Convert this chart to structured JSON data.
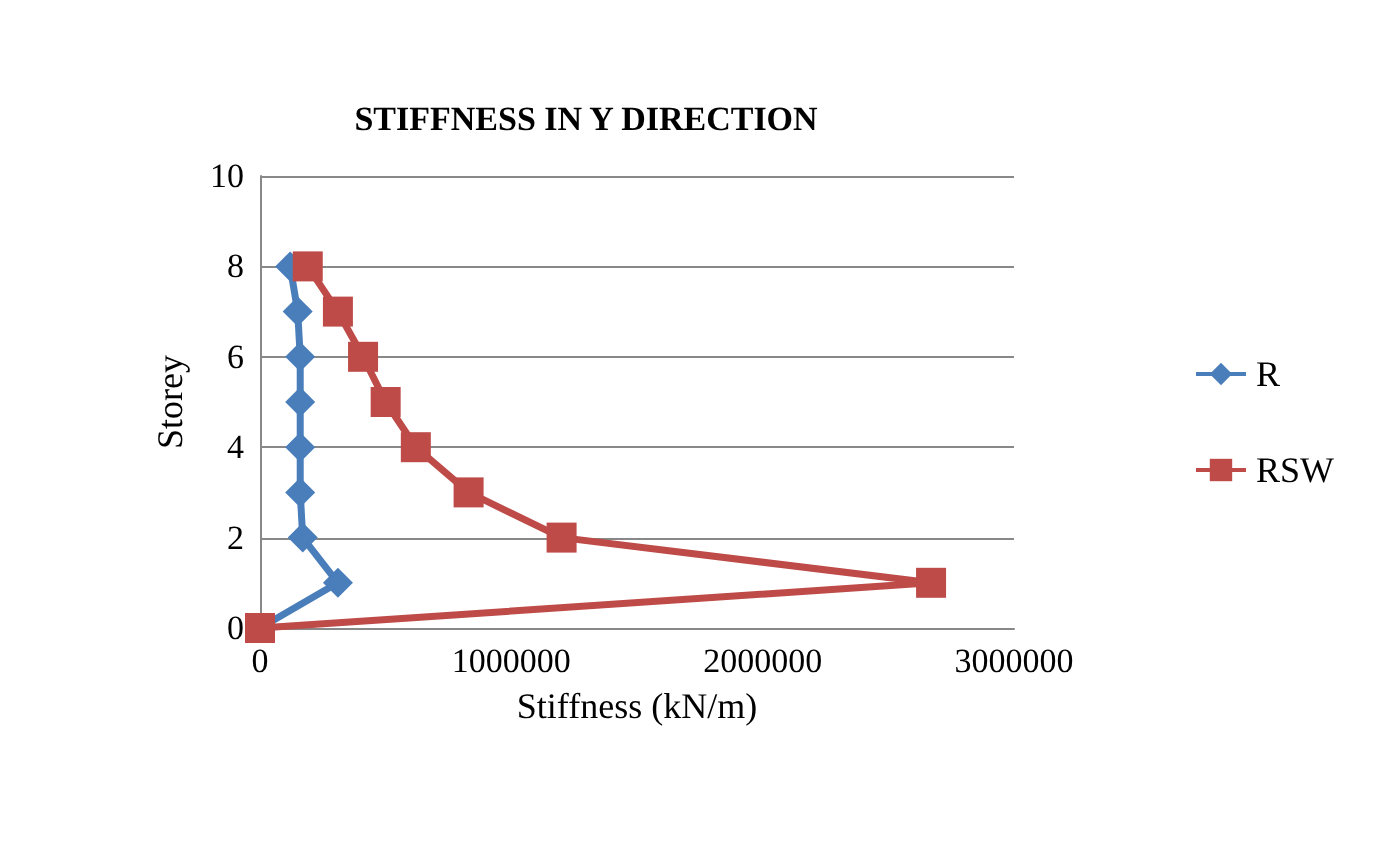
{
  "chart_data": {
    "type": "line",
    "title": "STIFFNESS IN Y DIRECTION",
    "xlabel": "Stiffness (kN/m)",
    "ylabel": "Storey",
    "xlim": [
      0,
      3000000
    ],
    "xticks": [
      0,
      1000000,
      2000000,
      3000000
    ],
    "ylim": [
      0,
      10
    ],
    "yticks": [
      0,
      2,
      4,
      6,
      8,
      10
    ],
    "grid": "y",
    "legend": "right",
    "series": [
      {
        "name": "R",
        "color": "#4a7ebb",
        "marker": "diamond",
        "x": [
          0,
          310000,
          170000,
          160000,
          160000,
          160000,
          160000,
          150000,
          120000
        ],
        "values": [
          0,
          1,
          2,
          3,
          4,
          5,
          6,
          7,
          8
        ]
      },
      {
        "name": "RSW",
        "color": "#be4b48",
        "marker": "square",
        "x": [
          0,
          2670000,
          1200000,
          830000,
          620000,
          500000,
          410000,
          310000,
          190000
        ],
        "values": [
          0,
          1,
          2,
          3,
          4,
          5,
          6,
          7,
          8
        ]
      }
    ]
  }
}
